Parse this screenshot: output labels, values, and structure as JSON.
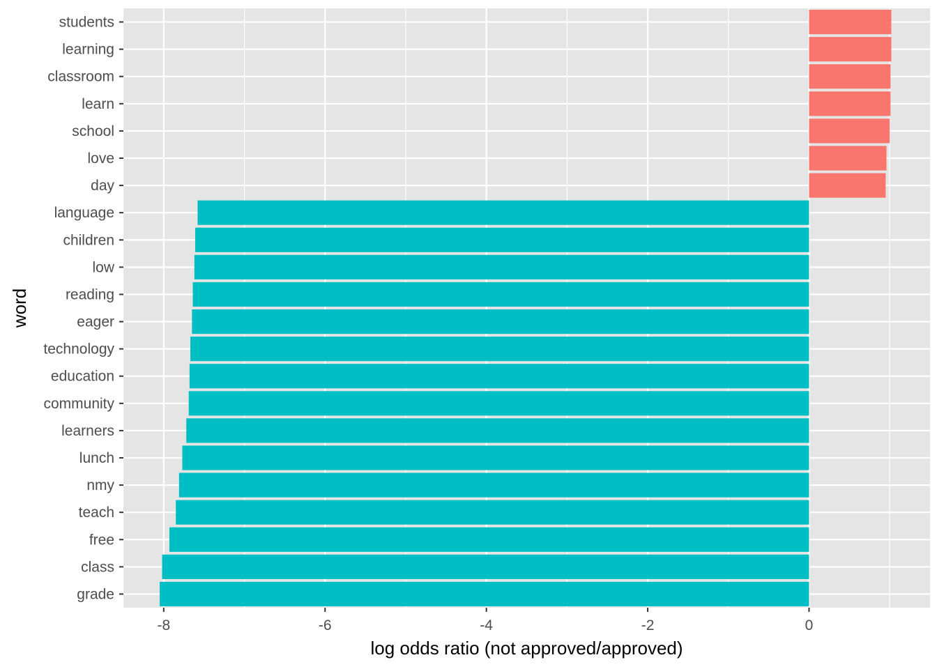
{
  "chart_data": {
    "type": "bar",
    "orientation": "horizontal",
    "xlabel": "log odds ratio (not approved/approved)",
    "ylabel": "word",
    "xlim": [
      -8.5,
      1.5
    ],
    "x_ticks": [
      -8,
      -6,
      -4,
      -2,
      0
    ],
    "x_tick_labels": [
      "-8",
      "-6",
      "-4",
      "-2",
      "0"
    ],
    "grid": true,
    "legend": "none",
    "panel_background": "#e5e5e5",
    "grid_color": "#ffffff",
    "colors": {
      "positive": "#f8766d",
      "negative": "#00bfc4"
    },
    "categories": [
      "students",
      "learning",
      "classroom",
      "learn",
      "school",
      "love",
      "day",
      "language",
      "children",
      "low",
      "reading",
      "eager",
      "technology",
      "education",
      "community",
      "learners",
      "lunch",
      "nmy",
      "teach",
      "free",
      "class",
      "grade"
    ],
    "values": [
      1.02,
      1.02,
      1.01,
      1.01,
      1.0,
      0.96,
      0.95,
      -7.58,
      -7.61,
      -7.62,
      -7.64,
      -7.65,
      -7.67,
      -7.68,
      -7.69,
      -7.72,
      -7.77,
      -7.81,
      -7.85,
      -7.93,
      -8.02,
      -8.05
    ]
  }
}
